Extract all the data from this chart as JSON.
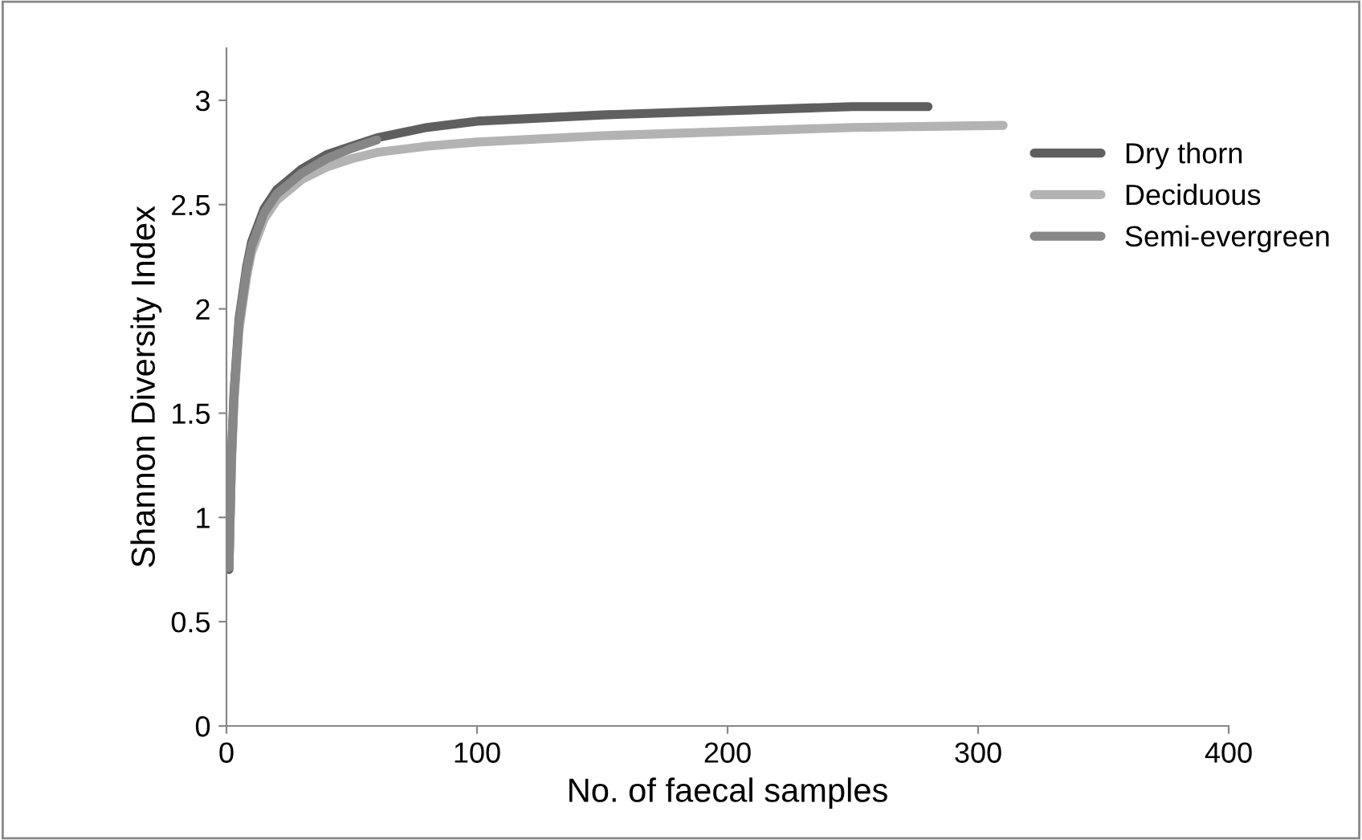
{
  "chart_data": {
    "type": "line",
    "xlabel": "No. of faecal samples",
    "ylabel": "Shannon Diversity Index",
    "xlim": [
      0,
      400
    ],
    "xticks": [
      0,
      100,
      200,
      300,
      400
    ],
    "ylim": [
      0,
      3.25
    ],
    "yticks": [
      0,
      0.5,
      1,
      1.5,
      2,
      2.5,
      3
    ],
    "grid": false,
    "legend": "right",
    "marker": "none",
    "line_style": "solid",
    "series": [
      {
        "name": "Dry thorn",
        "color": "#5f5f5f",
        "x": [
          1,
          2,
          3,
          5,
          8,
          10,
          15,
          20,
          30,
          40,
          50,
          60,
          80,
          100,
          150,
          200,
          250,
          280
        ],
        "values": [
          0.75,
          1.3,
          1.6,
          1.95,
          2.2,
          2.32,
          2.48,
          2.57,
          2.67,
          2.74,
          2.78,
          2.82,
          2.87,
          2.9,
          2.93,
          2.95,
          2.97,
          2.97
        ]
      },
      {
        "name": "Deciduous",
        "color": "#b3b3b3",
        "x": [
          1,
          2,
          3,
          5,
          8,
          10,
          15,
          20,
          30,
          40,
          50,
          60,
          80,
          100,
          150,
          200,
          250,
          310
        ],
        "values": [
          0.78,
          1.25,
          1.55,
          1.9,
          2.15,
          2.27,
          2.43,
          2.52,
          2.62,
          2.68,
          2.72,
          2.75,
          2.78,
          2.8,
          2.83,
          2.85,
          2.87,
          2.88
        ]
      },
      {
        "name": "Semi-evergreen",
        "color": "#878787",
        "x": [
          1,
          2,
          3,
          5,
          8,
          10,
          15,
          20,
          30,
          40,
          50,
          60
        ],
        "values": [
          0.76,
          1.28,
          1.58,
          1.93,
          2.18,
          2.3,
          2.46,
          2.55,
          2.65,
          2.72,
          2.77,
          2.81
        ]
      }
    ]
  }
}
